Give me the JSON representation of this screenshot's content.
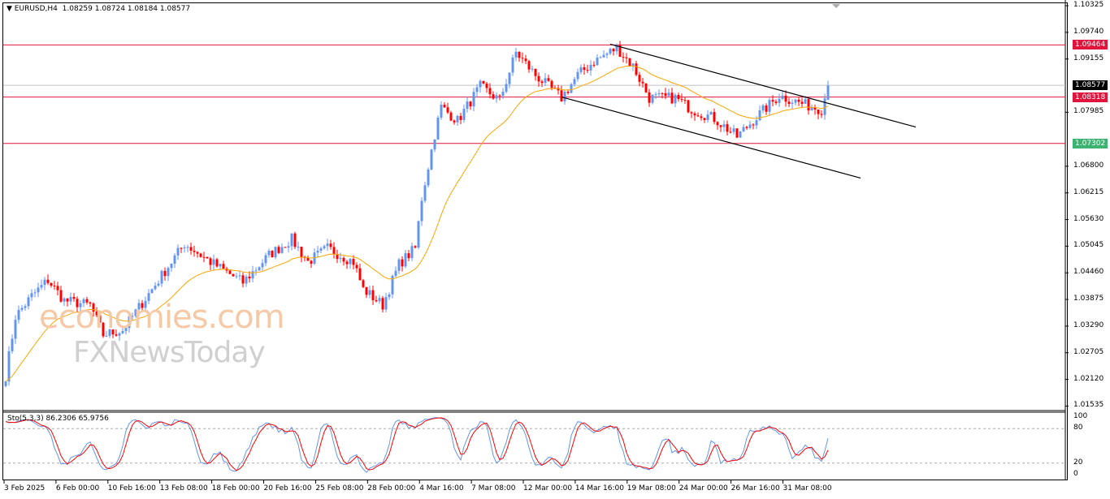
{
  "header": {
    "symbol": "EURUSD,H4",
    "ohlc": "1.08259 1.08724 1.08184 1.08577"
  },
  "stoch": {
    "label": "Sto(5,3,3) 86.2306 65.9756",
    "levels": [
      "100",
      "80",
      "20",
      "0"
    ]
  },
  "watermark": {
    "line1": "economies.com",
    "line2": "FXNewsToday"
  },
  "price_axis": [
    "1.10325",
    "1.09740",
    "1.09155",
    "1.07985",
    "1.06800",
    "1.06215",
    "1.05630",
    "1.05045",
    "1.04460",
    "1.03875",
    "1.03290",
    "1.02705",
    "1.02120",
    "1.01535"
  ],
  "price_labels": [
    {
      "text": "1.09464",
      "value": 1.09464,
      "color": "#e0143c"
    },
    {
      "text": "1.08577",
      "value": 1.08577,
      "color": "#000000"
    },
    {
      "text": "1.08318",
      "value": 1.08318,
      "color": "#e0143c"
    },
    {
      "text": "1.07302",
      "value": 1.07302,
      "color": "#3cb371"
    }
  ],
  "time_axis": [
    "3 Feb 2025",
    "6 Feb 00:00",
    "10 Feb 16:00",
    "13 Feb 08:00",
    "18 Feb 00:00",
    "20 Feb 16:00",
    "25 Feb 08:00",
    "28 Feb 00:00",
    "4 Mar 16:00",
    "7 Mar 08:00",
    "12 Mar 00:00",
    "14 Mar 16:00",
    "19 Mar 08:00",
    "24 Mar 00:00",
    "26 Mar 16:00",
    "31 Mar 08:00"
  ],
  "colors": {
    "bull": "#6495ed",
    "bear": "#ff0000",
    "ma": "#ffa500",
    "hline": "#dc143c"
  },
  "chart_data": {
    "type": "candlestick",
    "ylim": [
      1.01525,
      1.10325
    ],
    "path": [
      [
        0,
        1.022
      ],
      [
        3,
        1.035
      ],
      [
        8,
        1.0395
      ],
      [
        13,
        1.043
      ],
      [
        18,
        1.0385
      ],
      [
        26,
        1.0375
      ],
      [
        30,
        1.031
      ],
      [
        36,
        1.032
      ],
      [
        42,
        1.038
      ],
      [
        48,
        1.044
      ],
      [
        55,
        1.051
      ],
      [
        63,
        1.047
      ],
      [
        73,
        1.0425
      ],
      [
        81,
        1.0485
      ],
      [
        88,
        1.052
      ],
      [
        93,
        1.047
      ],
      [
        99,
        1.05
      ],
      [
        107,
        1.047
      ],
      [
        110,
        1.041
      ],
      [
        116,
        1.0375
      ],
      [
        121,
        1.0465
      ],
      [
        126,
        1.05
      ],
      [
        128,
        1.061
      ],
      [
        132,
        1.075
      ],
      [
        134,
        1.081
      ],
      [
        139,
        1.078
      ],
      [
        146,
        1.0855
      ],
      [
        152,
        1.0825
      ],
      [
        157,
        1.093
      ],
      [
        163,
        1.088
      ],
      [
        171,
        1.083
      ],
      [
        176,
        1.088
      ],
      [
        181,
        1.091
      ],
      [
        188,
        1.094
      ],
      [
        193,
        1.09
      ],
      [
        198,
        1.083
      ],
      [
        206,
        1.083
      ],
      [
        211,
        1.0805
      ],
      [
        218,
        1.0785
      ],
      [
        225,
        1.0745
      ],
      [
        232,
        1.0795
      ],
      [
        238,
        1.0835
      ],
      [
        246,
        1.0815
      ],
      [
        251,
        1.0805
      ],
      [
        253,
        1.0857
      ]
    ],
    "trendlines": [
      [
        [
          1.0948,
          186
        ],
        [
          1.0766,
          280
        ]
      ],
      [
        [
          1.0832,
          171
        ],
        [
          1.0654,
          263
        ]
      ]
    ]
  }
}
